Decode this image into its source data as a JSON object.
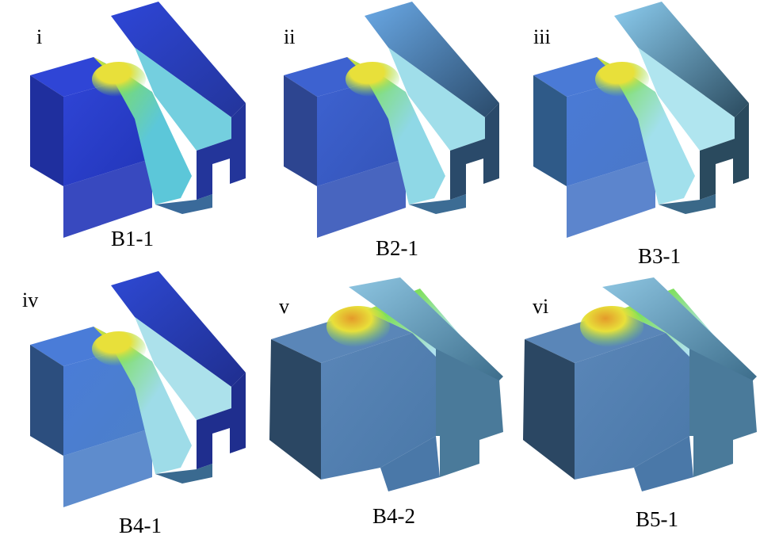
{
  "panels": [
    {
      "index": "i",
      "label": "B1-1",
      "variant": "A",
      "theme": "dark",
      "peak": 0.55
    },
    {
      "index": "ii",
      "label": "B2-1",
      "variant": "A",
      "theme": "medium",
      "peak": 0.55
    },
    {
      "index": "iii",
      "label": "B3-1",
      "variant": "A",
      "theme": "light",
      "peak": 0.6
    },
    {
      "index": "iv",
      "label": "B4-1",
      "variant": "A",
      "theme": "mixed",
      "peak": 0.7
    },
    {
      "index": "v",
      "label": "B4-2",
      "variant": "B",
      "theme": "pale",
      "peak": 0.85
    },
    {
      "index": "vi",
      "label": "B5-1",
      "variant": "B",
      "theme": "pale",
      "peak": 0.8
    }
  ],
  "colors": {
    "dark": {
      "leftTop": "#2f45d6",
      "leftFront": "#2235b8",
      "leftSide": "#1f2f9e",
      "rightTop": "#2e46d8",
      "rightSide": "#23359a",
      "bottom": "#3a6a9a",
      "groove": "#5cc7d9"
    },
    "medium": {
      "leftTop": "#3d62d0",
      "leftFront": "#3454b8",
      "leftSide": "#2d4590",
      "rightTop": "#6aa9e6",
      "rightSide": "#2a4a6a",
      "bottom": "#3c6c94",
      "groove": "#8fd8e6"
    },
    "light": {
      "leftTop": "#4a7ad6",
      "leftFront": "#4a78c8",
      "leftSide": "#2f5a88",
      "rightTop": "#8ccdf0",
      "rightSide": "#2a4a5e",
      "bottom": "#3a6888",
      "groove": "#a2e0ec"
    },
    "mixed": {
      "leftTop": "#4a7cd8",
      "leftFront": "#4c80c8",
      "leftSide": "#2c4e7e",
      "rightTop": "#2e49d4",
      "rightSide": "#1f2e8e",
      "bottom": "#3a6a90",
      "groove": "#9edce8"
    },
    "pale": {
      "leftTop": "#5a86b8",
      "leftFront": "#4a78a8",
      "leftSide": "#2b4763",
      "rightTop": "#8ec6e2",
      "rightSide": "#3a6a88",
      "bottom": "#4a7a9a",
      "groove": "#b0e2ee"
    },
    "hot": {
      "yellow": "#e8e03a",
      "green": "#7ee05a",
      "orange": "#e49a2a"
    }
  }
}
